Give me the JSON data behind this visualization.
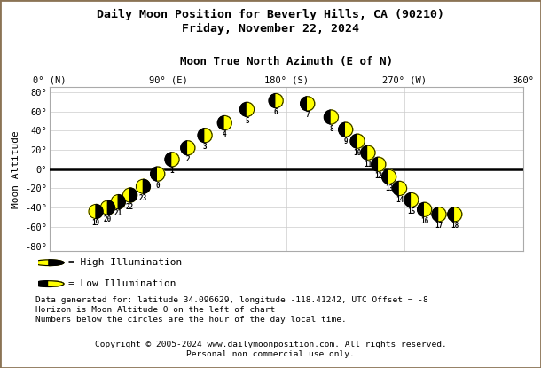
{
  "title1": "Daily Moon Position for Beverly Hills, CA (90210)",
  "title2": "Friday, November 22, 2024",
  "xlabel": "Moon True North Azimuth (E of N)",
  "ylabel": "Moon Altitude",
  "xtick_labels": [
    "0° (N)",
    "90° (E)",
    "180° (S)",
    "270° (W)",
    "360°"
  ],
  "xtick_positions": [
    0,
    90,
    180,
    270,
    360
  ],
  "ytick_labels": [
    "-80°",
    "-60°",
    "-40°",
    "-20°",
    "0°",
    "20°",
    "40°",
    "60°",
    "80°"
  ],
  "ytick_positions": [
    -80,
    -60,
    -40,
    -20,
    0,
    20,
    40,
    60,
    80
  ],
  "xlim": [
    0,
    360
  ],
  "ylim": [
    -85,
    85
  ],
  "hours": [
    19,
    20,
    21,
    22,
    23,
    0,
    1,
    2,
    3,
    4,
    5,
    6,
    7,
    8,
    9,
    10,
    11,
    12,
    13,
    14,
    15,
    16,
    17,
    18
  ],
  "azimuth": [
    35,
    44,
    52,
    61,
    71,
    82,
    93,
    105,
    118,
    133,
    150,
    172,
    196,
    214,
    225,
    234,
    242,
    250,
    258,
    266,
    275,
    285,
    296,
    308
  ],
  "altitude": [
    -44,
    -40,
    -34,
    -27,
    -18,
    -5,
    10,
    22,
    35,
    48,
    62,
    71,
    68,
    54,
    41,
    29,
    17,
    5,
    -8,
    -20,
    -32,
    -42,
    -47,
    -47
  ],
  "high_illumination": [
    true,
    true,
    true,
    true,
    true,
    false,
    false,
    false,
    false,
    false,
    false,
    false,
    false,
    false,
    false,
    false,
    false,
    false,
    false,
    false,
    false,
    false,
    false,
    false
  ],
  "moon_yellow": "#ffff00",
  "moon_black": "#000000",
  "bg_color": "#ffffff",
  "grid_color": "#cccccc",
  "horizon_color": "#000000",
  "footnote1": "Data generated for: latitude 34.096629, longitude -118.41242, UTC Offset = -8",
  "footnote2": "Horizon is Moon Altitude 0 on the left of chart",
  "footnote3": "Numbers below the circles are the hour of the day local time.",
  "copyright": "Copyright © 2005-2024 www.dailymoonposition.com. All rights reserved.",
  "copyright2": "Personal non commercial use only."
}
